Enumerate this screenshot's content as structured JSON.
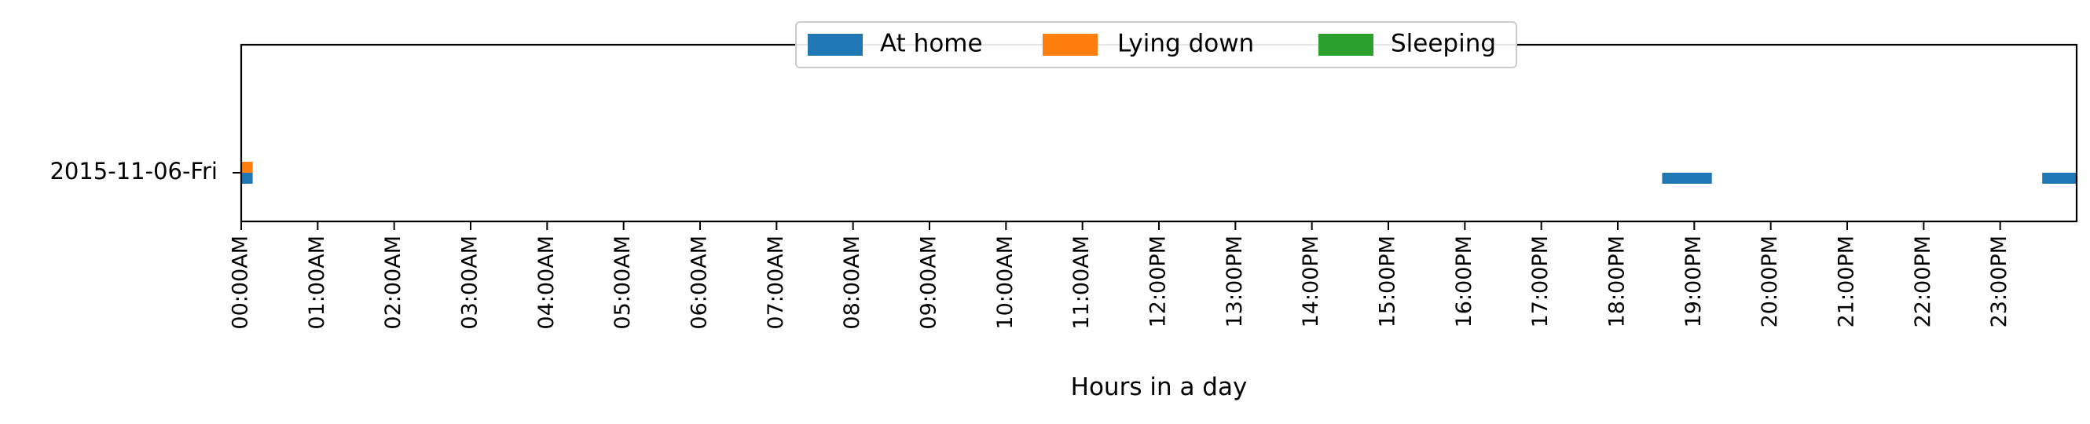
{
  "chart_data": {
    "type": "timeline",
    "title": "",
    "xlabel": "Hours in a day",
    "ylabel": "",
    "xlim": [
      0,
      24
    ],
    "x_ticks": [
      {
        "value": 0,
        "label": "00:00AM"
      },
      {
        "value": 1,
        "label": "01:00AM"
      },
      {
        "value": 2,
        "label": "02:00AM"
      },
      {
        "value": 3,
        "label": "03:00AM"
      },
      {
        "value": 4,
        "label": "04:00AM"
      },
      {
        "value": 5,
        "label": "05:00AM"
      },
      {
        "value": 6,
        "label": "06:00AM"
      },
      {
        "value": 7,
        "label": "07:00AM"
      },
      {
        "value": 8,
        "label": "08:00AM"
      },
      {
        "value": 9,
        "label": "09:00AM"
      },
      {
        "value": 10,
        "label": "10:00AM"
      },
      {
        "value": 11,
        "label": "11:00AM"
      },
      {
        "value": 12,
        "label": "12:00PM"
      },
      {
        "value": 13,
        "label": "13:00PM"
      },
      {
        "value": 14,
        "label": "14:00PM"
      },
      {
        "value": 15,
        "label": "15:00PM"
      },
      {
        "value": 16,
        "label": "16:00PM"
      },
      {
        "value": 17,
        "label": "17:00PM"
      },
      {
        "value": 18,
        "label": "18:00PM"
      },
      {
        "value": 19,
        "label": "19:00PM"
      },
      {
        "value": 20,
        "label": "20:00PM"
      },
      {
        "value": 21,
        "label": "21:00PM"
      },
      {
        "value": 22,
        "label": "22:00PM"
      },
      {
        "value": 23,
        "label": "23:00PM"
      }
    ],
    "categories": [
      "2015-11-06-Fri"
    ],
    "legend": {
      "position": "top-center"
    },
    "grid": false,
    "series": [
      {
        "name": "At home",
        "color": "#1f77b4",
        "intervals": [
          {
            "day": "2015-11-06-Fri",
            "start": 0.0,
            "end": 0.15
          },
          {
            "day": "2015-11-06-Fri",
            "start": 18.58,
            "end": 19.23
          },
          {
            "day": "2015-11-06-Fri",
            "start": 23.55,
            "end": 24.0
          }
        ]
      },
      {
        "name": "Lying down",
        "color": "#ff7f0e",
        "intervals": [
          {
            "day": "2015-11-06-Fri",
            "start": 0.0,
            "end": 0.15
          }
        ]
      },
      {
        "name": "Sleeping",
        "color": "#2ca02c",
        "intervals": []
      }
    ]
  }
}
